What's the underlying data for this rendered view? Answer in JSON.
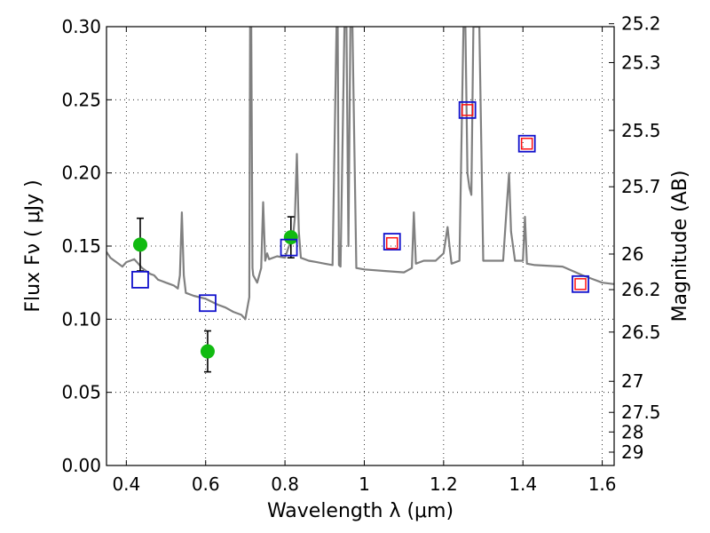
{
  "chart_data": {
    "type": "scatter",
    "title": "",
    "xlabel": "Wavelength  λ (μm)",
    "ylabel": "Flux  Fν  ( μJy )",
    "y2label": "Magnitude (AB)",
    "xlim": [
      0.35,
      1.63
    ],
    "ylim": [
      0.0,
      0.3
    ],
    "grid": true,
    "x_ticks": [
      0.4,
      0.6,
      0.8,
      1.0,
      1.2,
      1.4,
      1.6
    ],
    "x_tick_labels": [
      "0.4",
      "0.6",
      "0.8",
      "1",
      "1.2",
      "1.4",
      "1.6"
    ],
    "y_ticks": [
      0.0,
      0.05,
      0.1,
      0.15,
      0.2,
      0.25,
      0.3
    ],
    "y_tick_labels": [
      "0.00",
      "0.05",
      "0.10",
      "0.15",
      "0.20",
      "0.25",
      "0.30"
    ],
    "y2_ticks": [
      "25.2",
      "25.3",
      "25.5",
      "25.7",
      "26",
      "26.2",
      "26.5",
      "27",
      "27.5",
      "28",
      "29"
    ],
    "series": [
      {
        "kind": "line",
        "color": "#808080",
        "x": [
          0.35,
          0.36,
          0.37,
          0.38,
          0.39,
          0.4,
          0.41,
          0.42,
          0.43,
          0.44,
          0.45,
          0.46,
          0.47,
          0.48,
          0.49,
          0.5,
          0.51,
          0.52,
          0.53,
          0.535,
          0.54,
          0.545,
          0.55,
          0.57,
          0.6,
          0.63,
          0.65,
          0.67,
          0.69,
          0.7,
          0.71,
          0.712,
          0.715,
          0.718,
          0.72,
          0.73,
          0.74,
          0.745,
          0.75,
          0.755,
          0.76,
          0.78,
          0.8,
          0.81,
          0.82,
          0.825,
          0.83,
          0.835,
          0.84,
          0.86,
          0.88,
          0.9,
          0.92,
          0.93,
          0.933,
          0.936,
          0.94,
          0.95,
          0.955,
          0.96,
          0.965,
          0.97,
          0.98,
          1.0,
          1.05,
          1.1,
          1.12,
          1.125,
          1.13,
          1.15,
          1.18,
          1.2,
          1.21,
          1.215,
          1.22,
          1.24,
          1.25,
          1.255,
          1.26,
          1.265,
          1.27,
          1.275,
          1.28,
          1.29,
          1.3,
          1.35,
          1.36,
          1.365,
          1.37,
          1.38,
          1.4,
          1.405,
          1.41,
          1.43,
          1.5,
          1.55,
          1.58,
          1.6,
          1.63
        ],
        "y": [
          0.146,
          0.142,
          0.14,
          0.138,
          0.136,
          0.139,
          0.14,
          0.141,
          0.138,
          0.135,
          0.133,
          0.131,
          0.13,
          0.127,
          0.126,
          0.125,
          0.124,
          0.123,
          0.121,
          0.13,
          0.173,
          0.13,
          0.118,
          0.116,
          0.114,
          0.11,
          0.108,
          0.105,
          0.103,
          0.1,
          0.115,
          0.3,
          0.3,
          0.135,
          0.13,
          0.125,
          0.135,
          0.18,
          0.14,
          0.145,
          0.141,
          0.143,
          0.142,
          0.15,
          0.155,
          0.17,
          0.213,
          0.16,
          0.142,
          0.14,
          0.139,
          0.138,
          0.137,
          0.3,
          0.3,
          0.137,
          0.136,
          0.3,
          0.3,
          0.15,
          0.3,
          0.3,
          0.135,
          0.134,
          0.133,
          0.132,
          0.135,
          0.173,
          0.138,
          0.14,
          0.14,
          0.145,
          0.163,
          0.15,
          0.138,
          0.14,
          0.3,
          0.3,
          0.2,
          0.19,
          0.185,
          0.3,
          0.3,
          0.3,
          0.14,
          0.14,
          0.18,
          0.2,
          0.16,
          0.14,
          0.14,
          0.17,
          0.138,
          0.137,
          0.136,
          0.13,
          0.127,
          0.125,
          0.124
        ]
      },
      {
        "kind": "points",
        "marker": "circle",
        "color": "#11bb11",
        "x": [
          0.435,
          0.605,
          0.815
        ],
        "y": [
          0.151,
          0.078,
          0.156
        ],
        "yerr": [
          0.018,
          0.014,
          0.014
        ]
      },
      {
        "kind": "points",
        "marker": "open-square",
        "color": "#1111cc",
        "x": [
          0.435,
          0.605,
          0.81,
          1.07,
          1.26,
          1.41,
          1.545
        ],
        "y": [
          0.127,
          0.111,
          0.149,
          0.153,
          0.243,
          0.22,
          0.124
        ]
      },
      {
        "kind": "points",
        "marker": "open-square",
        "color": "#ff1111",
        "x": [
          1.07,
          1.26,
          1.41,
          1.545
        ],
        "y": [
          0.152,
          0.243,
          0.22,
          0.124
        ]
      }
    ]
  }
}
